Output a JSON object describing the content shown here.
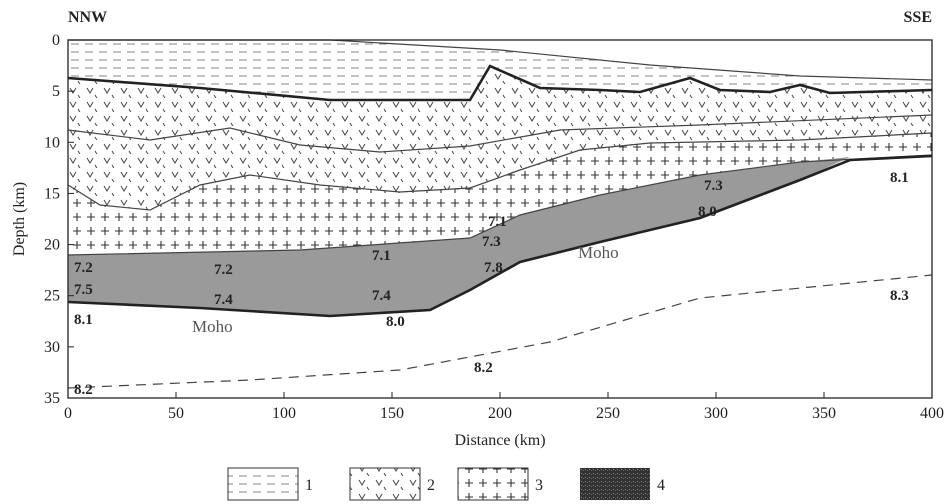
{
  "ends": {
    "left": "NNW",
    "right": "SSE"
  },
  "axes": {
    "xlabel": "Distance (km)",
    "ylabel": "Depth (km)",
    "xlim": [
      0,
      400
    ],
    "xticks": [
      0,
      50,
      100,
      150,
      200,
      250,
      300,
      350,
      400
    ],
    "ylim": [
      0,
      35
    ],
    "yticks": [
      0,
      5,
      10,
      15,
      20,
      25,
      30,
      35
    ]
  },
  "annotations": [
    "7.2",
    "7.5",
    "8.1",
    "7.2",
    "7.4",
    "Moho",
    "7.1",
    "7.4",
    "8.0",
    "7.1",
    "7.3",
    "7.8",
    "Moho",
    "7.3",
    "8.0",
    "8.1",
    "8.3",
    "8.2",
    "8.2"
  ],
  "legend": [
    "1",
    "2",
    "3",
    "4"
  ]
}
